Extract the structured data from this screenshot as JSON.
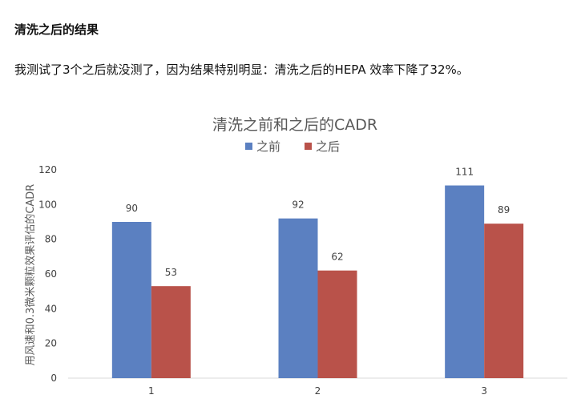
{
  "section": {
    "heading": "清洗之后的结果",
    "body": "我测试了3个之后就没测了，因为结果特别明显：清洗之后的HEPA 效率下降了32%。"
  },
  "chart_data": {
    "type": "bar",
    "title": "清洗之前和之后的CADR",
    "xlabel": "",
    "ylabel": "用风速和0.3微米颗粒效果评估的CADR",
    "categories": [
      "1",
      "2",
      "3"
    ],
    "series": [
      {
        "name": "之前",
        "values": [
          90,
          92,
          111
        ],
        "color": "#5b80c1"
      },
      {
        "name": "之后",
        "values": [
          53,
          62,
          89
        ],
        "color": "#b9524a"
      }
    ],
    "ylim": [
      0,
      120
    ],
    "yticks": [
      0,
      20,
      40,
      60,
      80,
      100,
      120
    ],
    "grid": false,
    "legend_position": "top-center",
    "data_labels": true
  }
}
